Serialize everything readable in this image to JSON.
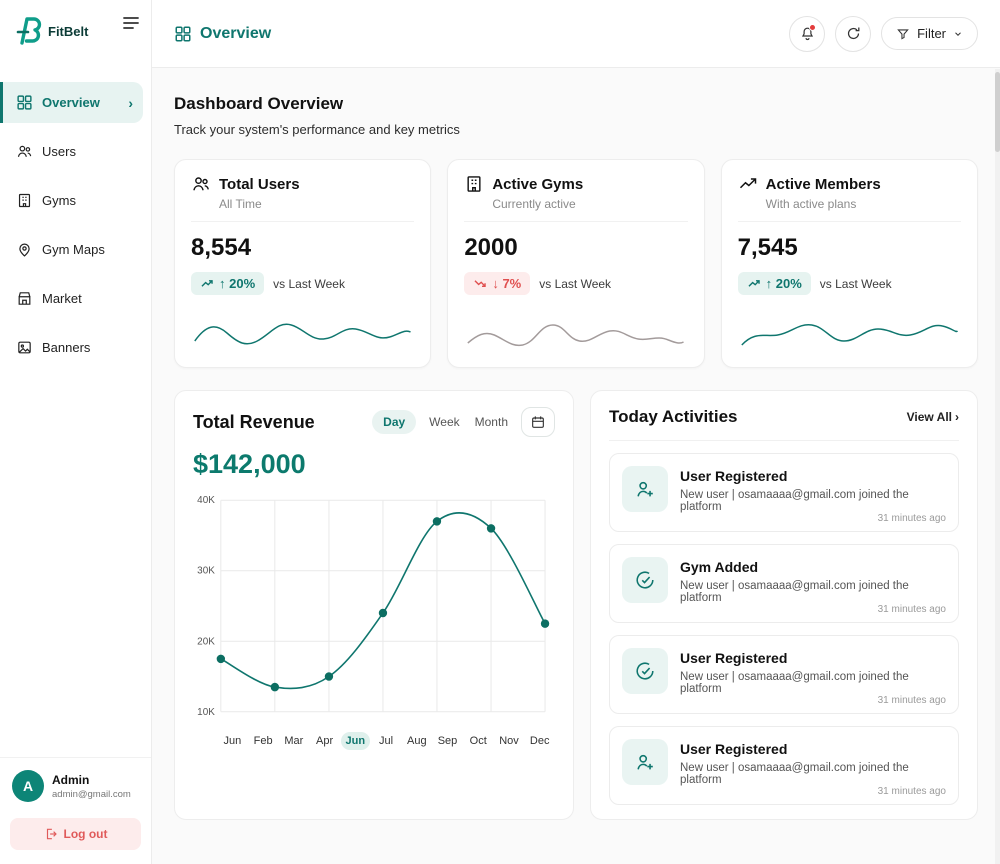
{
  "brand": {
    "name": "FitBelt"
  },
  "sidebar": {
    "items": [
      {
        "label": "Overview",
        "icon": "grid-icon"
      },
      {
        "label": "Users",
        "icon": "users-icon"
      },
      {
        "label": "Gyms",
        "icon": "building-icon"
      },
      {
        "label": "Gym Maps",
        "icon": "map-pin-icon"
      },
      {
        "label": "Market",
        "icon": "store-icon"
      },
      {
        "label": "Banners",
        "icon": "image-icon"
      }
    ],
    "profile": {
      "name": "Admin",
      "email": "admin@gmail.com",
      "avatar_initial": "A"
    },
    "logout_label": "Log out"
  },
  "header": {
    "title": "Overview",
    "filter_label": "Filter"
  },
  "page": {
    "title": "Dashboard Overview",
    "subtitle": "Track your system's performance and key metrics"
  },
  "stats": [
    {
      "title": "Total Users",
      "subtitle": "All Time",
      "value": "8,554",
      "change": "↑ 20%",
      "direction": "up",
      "compare": "vs Last Week",
      "icon": "users-icon",
      "spark_color": "#0f766e"
    },
    {
      "title": "Active Gyms",
      "subtitle": "Currently active",
      "value": "2000",
      "change": "↓ 7%",
      "direction": "down",
      "compare": "vs Last Week",
      "icon": "building-icon",
      "spark_color": "#a39b9b"
    },
    {
      "title": "Active Members",
      "subtitle": "With active plans",
      "value": "7,545",
      "change": "↑ 20%",
      "direction": "up",
      "compare": "vs Last Week",
      "icon": "trend-up-icon",
      "spark_color": "#0f766e"
    }
  ],
  "revenue": {
    "title": "Total Revenue",
    "value": "$142,000",
    "range_options": [
      "Day",
      "Week",
      "Month"
    ],
    "active_range": "Day",
    "selected_month": "Jun"
  },
  "chart_data": {
    "type": "line",
    "title": "Total Revenue",
    "x_labels": [
      "Jun",
      "Feb",
      "Mar",
      "Apr",
      "Jun",
      "Jul",
      "Aug",
      "Sep",
      "Oct",
      "Nov",
      "Dec"
    ],
    "values_k": [
      17.5,
      13.5,
      15,
      24,
      37,
      36,
      22.5
    ],
    "y_ticks": [
      "40K",
      "30K",
      "20K",
      "10K"
    ],
    "ylim": [
      10,
      40
    ],
    "unit": "K USD",
    "grid": true,
    "highlighted_x_label": "Jun",
    "accent": "#0f766e"
  },
  "activities": {
    "title": "Today Activities",
    "view_all_label": "View All",
    "items": [
      {
        "title": "User Registered",
        "icon": "user-plus-icon",
        "description": "New user | osamaaaa@gmail.com joined the platform",
        "time": "31 minutes ago"
      },
      {
        "title": "Gym Added",
        "icon": "check-circle-icon",
        "description": "New user | osamaaaa@gmail.com joined the platform",
        "time": "31 minutes ago"
      },
      {
        "title": "User Registered",
        "icon": "check-circle-icon",
        "description": "New user | osamaaaa@gmail.com joined the platform",
        "time": "31 minutes ago"
      },
      {
        "title": "User Registered",
        "icon": "user-plus-icon",
        "description": "New user | osamaaaa@gmail.com joined the platform",
        "time": "31 minutes ago"
      }
    ]
  },
  "colors": {
    "accent": "#0f766e",
    "danger": "#e04f4f",
    "badge_up_bg": "#e6f3f0",
    "badge_down_bg": "#fdecec"
  }
}
